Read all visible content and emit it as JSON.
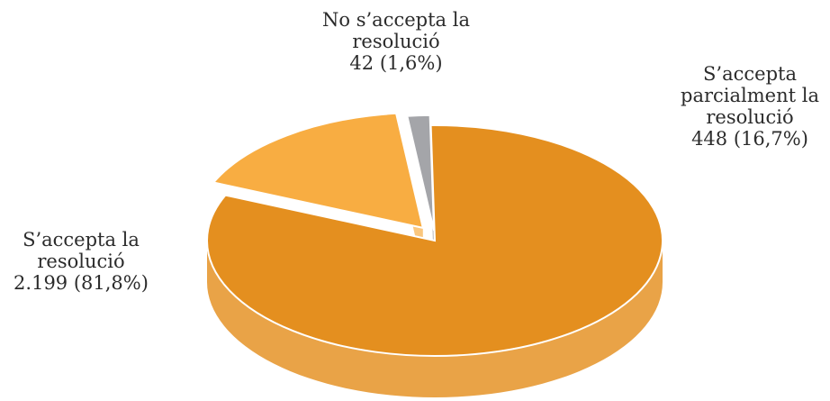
{
  "chart_data": {
    "type": "pie",
    "style": "3d-exploded",
    "slices": [
      {
        "label_lines": [
          "S’accepta la",
          "resolució"
        ],
        "value_text": "2.199 (81,8%)",
        "value": 2199,
        "percent": 81.8,
        "color": "#e48f1f"
      },
      {
        "label_lines": [
          "S’accepta",
          "parcialment la",
          "resolució"
        ],
        "value_text": "448 (16,7%)",
        "value": 448,
        "percent": 16.7,
        "color": "#f8ad42"
      },
      {
        "label_lines": [
          "No s’accepta la",
          "resolució"
        ],
        "value_text": "42 (1,6%)",
        "value": 42,
        "percent": 1.6,
        "color": "#a4a5a9"
      }
    ]
  }
}
